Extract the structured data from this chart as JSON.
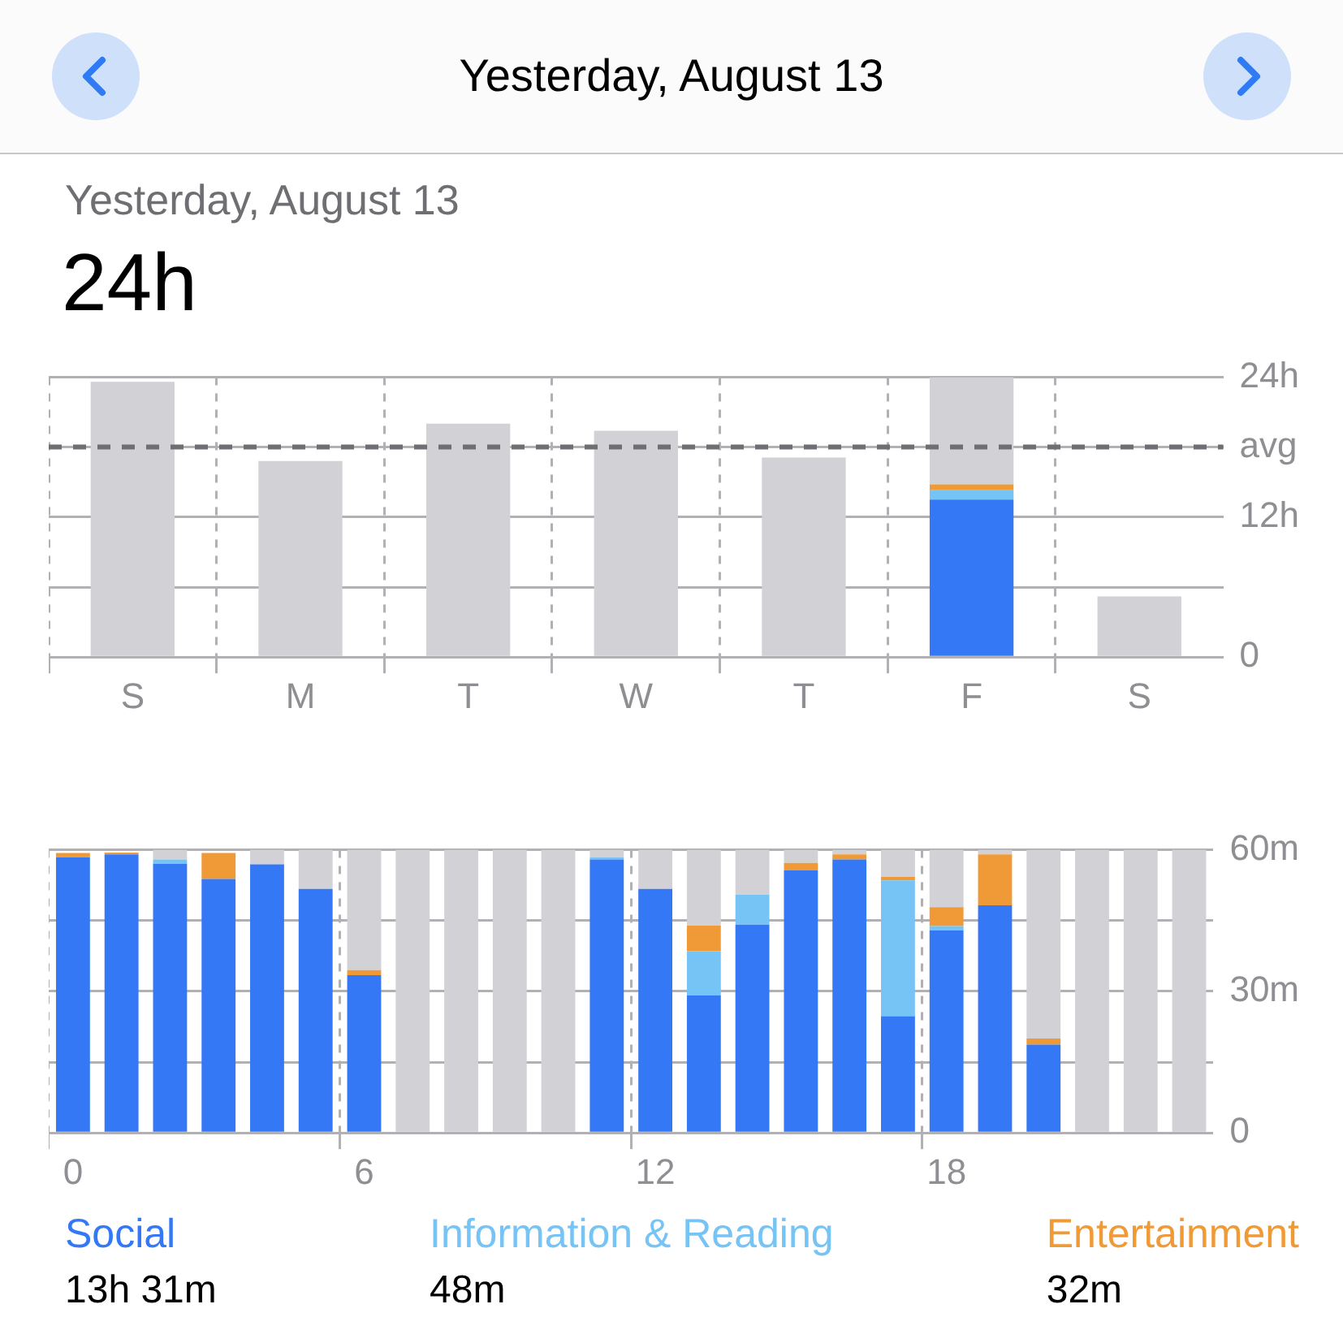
{
  "chart_data": [
    {
      "type": "bar",
      "title": "24h",
      "subtitle": "Yesterday, August 13",
      "annotations": [
        "Yesterday, August 13"
      ],
      "stacked": true,
      "categories": [
        "S",
        "M",
        "T",
        "W",
        "T",
        "F",
        "S"
      ],
      "series": [
        {
          "color": "#3478f6",
          "values": [
            null,
            null,
            null,
            null,
            null,
            13.5,
            null
          ]
        },
        {
          "color": "#76c3f5",
          "values": [
            null,
            null,
            null,
            null,
            null,
            0.8,
            null
          ]
        },
        {
          "color": "#f09a37",
          "values": [
            null,
            null,
            null,
            null,
            null,
            0.5,
            null
          ]
        },
        {
          "color": "#d1d1d6",
          "values": [
            23.6,
            16.8,
            20.0,
            19.4,
            17.1,
            9.2,
            5.2
          ]
        }
      ],
      "ylim": [
        0,
        24
      ],
      "yticks": [
        0,
        {
          "value": 6,
          "label": null
        },
        {
          "value": 12,
          "label": "12h"
        },
        {
          "value": 18,
          "label": null
        },
        {
          "value": 24,
          "label": "24h"
        }
      ],
      "grid": true,
      "ref_lines": [
        {
          "axis": "y",
          "value": 18,
          "label": "avg",
          "color": "#6e6e73",
          "line_style": "dashed"
        }
      ]
    },
    {
      "type": "bar",
      "stacked": true,
      "categories": [
        "0",
        null,
        null,
        null,
        null,
        null,
        "6",
        null,
        null,
        null,
        null,
        null,
        "12",
        null,
        null,
        null,
        null,
        null,
        "18",
        null,
        null,
        null,
        null,
        null
      ],
      "series": [
        {
          "name": "Social",
          "color": "#3478f6",
          "values": [
            58.4,
            59.0,
            57.0,
            53.8,
            56.9,
            51.7,
            33.4,
            0,
            0,
            0,
            0,
            57.9,
            51.7,
            29.1,
            44.1,
            55.6,
            57.9,
            24.7,
            42.9,
            48.2,
            18.7,
            0,
            0,
            0
          ]
        },
        {
          "name": "Information & Reading",
          "color": "#76c3f5",
          "values": [
            0,
            0,
            0.9,
            0,
            0,
            0,
            0,
            0,
            0,
            0,
            0,
            0.5,
            0,
            9.4,
            6.4,
            0,
            0,
            28.8,
            0.9,
            0,
            0,
            0,
            0,
            0
          ]
        },
        {
          "name": "Entertainment",
          "color": "#f09a37",
          "values": [
            0.9,
            0.4,
            0,
            5.5,
            0,
            0,
            1.1,
            0,
            0,
            0,
            0,
            0,
            0,
            5.4,
            0,
            1.6,
            1.1,
            0.7,
            4.0,
            10.8,
            1.3,
            0,
            0,
            0
          ]
        },
        {
          "color": "#d1d1d6",
          "values": [
            null,
            null,
            2.1,
            null,
            3.1,
            8.3,
            25.5,
            60,
            60,
            60,
            60,
            1.6,
            8.3,
            16.1,
            9.5,
            2.8,
            1.0,
            5.8,
            12.2,
            1.0,
            40.0,
            60,
            60,
            60
          ]
        }
      ],
      "ylim": [
        0,
        60
      ],
      "yticks": [
        0,
        {
          "value": 15,
          "label": null
        },
        {
          "value": 30,
          "label": "30m"
        },
        {
          "value": 45,
          "label": null
        },
        {
          "value": 60,
          "label": "60m"
        }
      ],
      "grid": true,
      "legend": "bottom",
      "annotations": [
        "13h 31m",
        "48m",
        "32m"
      ]
    }
  ]
}
